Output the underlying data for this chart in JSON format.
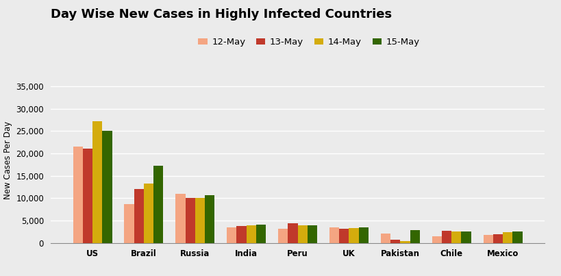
{
  "title": "Day Wise New Cases in Highly Infected Countries",
  "ylabel": "New Cases Per Day",
  "categories": [
    "US",
    "Brazil",
    "Russia",
    "India",
    "Peru",
    "UK",
    "Pakistan",
    "Chile",
    "Mexico"
  ],
  "series": {
    "12-May": [
      21500,
      8700,
      11000,
      3500,
      3200,
      3400,
      2100,
      1500,
      1800
    ],
    "13-May": [
      21000,
      12000,
      10000,
      3700,
      4400,
      3200,
      750,
      2700,
      1900
    ],
    "14-May": [
      27200,
      13300,
      10100,
      3900,
      3900,
      3300,
      400,
      2600,
      2400
    ],
    "15-May": [
      25000,
      17200,
      10700,
      4000,
      3900,
      3500,
      2900,
      2600,
      2500
    ]
  },
  "series_order": [
    "12-May",
    "13-May",
    "14-May",
    "15-May"
  ],
  "colors": {
    "12-May": "#F4A582",
    "13-May": "#C0392B",
    "14-May": "#D4AC0D",
    "15-May": "#336600"
  },
  "ylim": [
    0,
    37000
  ],
  "yticks": [
    0,
    5000,
    10000,
    15000,
    20000,
    25000,
    30000,
    35000
  ],
  "background_color": "#EBEBEB",
  "grid_color": "#FFFFFF",
  "title_fontsize": 13,
  "legend_fontsize": 9.5,
  "tick_fontsize": 8.5,
  "bar_width": 0.19
}
